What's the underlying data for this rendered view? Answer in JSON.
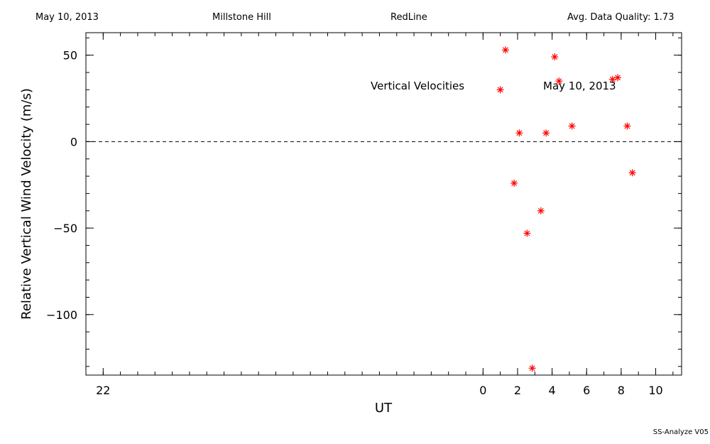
{
  "header": {
    "date": "May 10, 2013",
    "site": "Millstone Hill",
    "line": "RedLine",
    "quality": "Avg. Data Quality: 1.73"
  },
  "footer": {
    "software": "SS-Analyze V05"
  },
  "chart_data": {
    "type": "scatter",
    "xlabel": "UT",
    "ylabel": "Relative Vertical Wind Velocity  (m/s)",
    "annotations": [
      "Vertical Velocities",
      "May 10, 2013"
    ],
    "xlim": [
      -23,
      11.5
    ],
    "ylim": [
      -135,
      63
    ],
    "x_ticks": [
      -22,
      0,
      2,
      4,
      6,
      8,
      10
    ],
    "x_tick_labels": [
      "22",
      "0",
      "2",
      "4",
      "6",
      "8",
      "10"
    ],
    "y_ticks": [
      50,
      0,
      -50,
      -100
    ],
    "y_tick_labels": [
      "50",
      "0",
      "−50",
      "−100"
    ],
    "reference_line": {
      "y": 0,
      "style": "dashed"
    },
    "marker": "asterisk",
    "marker_color": "#ff0000",
    "series": [
      {
        "points": [
          {
            "x": 1.0,
            "y": 30
          },
          {
            "x": 1.3,
            "y": 53
          },
          {
            "x": 1.8,
            "y": -24
          },
          {
            "x": 2.1,
            "y": 5
          },
          {
            "x": 2.55,
            "y": -53
          },
          {
            "x": 2.85,
            "y": -131
          },
          {
            "x": 3.35,
            "y": -40
          },
          {
            "x": 3.65,
            "y": 5
          },
          {
            "x": 4.15,
            "y": 49
          },
          {
            "x": 4.4,
            "y": 35
          },
          {
            "x": 5.15,
            "y": 9
          },
          {
            "x": 7.5,
            "y": 36
          },
          {
            "x": 7.8,
            "y": 37
          },
          {
            "x": 8.35,
            "y": 9
          },
          {
            "x": 8.65,
            "y": -18
          }
        ]
      }
    ]
  }
}
